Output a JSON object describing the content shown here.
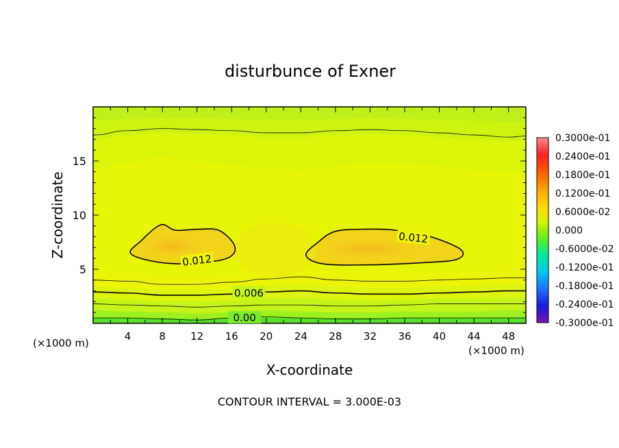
{
  "chart_data": {
    "type": "contour",
    "title": "disturbunce of Exner",
    "xlabel": "X-coordinate",
    "ylabel": "Z-coordinate",
    "x_unit_left": "(×1000 m)",
    "x_unit_right": "(×1000 m)",
    "footer": "CONTOUR INTERVAL = 3.000E-03",
    "xlim": [
      0,
      50
    ],
    "ylim": [
      0,
      20
    ],
    "x_ticks": [
      4,
      8,
      12,
      16,
      20,
      24,
      28,
      32,
      36,
      40,
      44,
      48
    ],
    "y_ticks": [
      5,
      10,
      15
    ],
    "contour_interval": 0.003,
    "contour_labels": [
      {
        "text": "0.012",
        "x": 12,
        "z": 5.8
      },
      {
        "text": "0.012",
        "x": 37,
        "z": 7.9
      },
      {
        "text": "0.006",
        "x": 18,
        "z": 2.8
      },
      {
        "text": "0.00",
        "x": 17.5,
        "z": 0.5
      }
    ],
    "levels": [
      {
        "z": [
          0.5,
          0.5,
          0.4,
          0.3,
          0.5,
          0.6,
          0.5,
          0.4,
          0.4,
          0.5,
          0.5,
          0.5,
          0.5,
          0.5
        ],
        "weight": "thin"
      },
      {
        "z": [
          1.8,
          1.7,
          1.6,
          1.5,
          1.6,
          1.7,
          1.7,
          1.6,
          1.6,
          1.7,
          1.8,
          1.8,
          1.8,
          1.8
        ],
        "weight": "thin"
      },
      {
        "z": [
          2.9,
          2.8,
          2.6,
          2.6,
          2.7,
          2.9,
          3.0,
          2.8,
          2.7,
          2.7,
          2.8,
          2.9,
          3.0,
          3.0
        ],
        "weight": "bold"
      },
      {
        "z": [
          4.0,
          3.9,
          3.6,
          3.6,
          3.8,
          4.1,
          4.3,
          4.0,
          3.9,
          3.9,
          4.0,
          4.1,
          4.2,
          4.2
        ],
        "weight": "thin"
      },
      {
        "z": [
          17.4,
          17.8,
          18.0,
          17.9,
          17.8,
          17.6,
          17.6,
          17.8,
          17.9,
          17.8,
          17.6,
          17.4,
          17.2,
          17.3
        ],
        "weight": "thin"
      }
    ],
    "x_nodes": [
      0,
      4,
      8,
      12,
      16,
      20,
      24,
      28,
      32,
      36,
      40,
      44,
      48,
      50
    ],
    "closed_contours": [
      {
        "value": 0.012,
        "points": [
          [
            4.3,
            6.5
          ],
          [
            5.5,
            7.6
          ],
          [
            7.8,
            9.1
          ],
          [
            9.5,
            8.6
          ],
          [
            12.2,
            8.7
          ],
          [
            14.5,
            8.6
          ],
          [
            16.2,
            7.4
          ],
          [
            16.2,
            6.4
          ],
          [
            14.5,
            5.8
          ],
          [
            10.0,
            5.5
          ],
          [
            6.5,
            5.8
          ]
        ]
      },
      {
        "value": 0.012,
        "points": [
          [
            24.6,
            6.3
          ],
          [
            26.0,
            7.5
          ],
          [
            28.0,
            8.5
          ],
          [
            31.5,
            8.7
          ],
          [
            35.0,
            8.6
          ],
          [
            39.0,
            8.0
          ],
          [
            42.5,
            6.8
          ],
          [
            42.0,
            5.9
          ],
          [
            38.0,
            5.6
          ],
          [
            31.5,
            5.4
          ],
          [
            26.5,
            5.5
          ]
        ]
      }
    ],
    "fill_bands": [
      {
        "color": "#7cec28",
        "z": [
          0.0,
          0.0,
          0.0,
          0.0,
          0.0,
          0.0,
          0.0,
          0.0,
          0.0,
          0.0,
          0.0,
          0.0,
          0.0,
          0.0
        ]
      },
      {
        "color": "#9ef021",
        "z": [
          1.2,
          1.1,
          1.0,
          0.9,
          1.0,
          1.2,
          1.1,
          1.0,
          1.0,
          1.1,
          1.1,
          1.1,
          1.2,
          1.2
        ]
      },
      {
        "color": "#c4f418",
        "z": [
          2.3,
          2.2,
          2.0,
          2.0,
          2.1,
          2.3,
          2.3,
          2.2,
          2.1,
          2.2,
          2.3,
          2.3,
          2.4,
          2.4
        ]
      },
      {
        "color": "#ddf40f",
        "z": [
          3.4,
          3.3,
          3.1,
          3.1,
          3.2,
          3.5,
          3.6,
          3.4,
          3.3,
          3.3,
          3.4,
          3.5,
          3.6,
          3.6
        ]
      },
      {
        "color": "#eef407",
        "z": [
          4.6,
          4.5,
          4.3,
          4.3,
          4.4,
          4.7,
          4.9,
          4.6,
          4.5,
          4.5,
          4.6,
          4.7,
          4.8,
          4.8
        ]
      }
    ],
    "colorbar": {
      "labels": [
        "0.3000e-01",
        "0.2400e-01",
        "0.1800e-01",
        "0.1200e-01",
        "0.6000e-02",
        "0.000",
        "-0.6000e-02",
        "-0.1200e-01",
        "-0.1800e-01",
        "-0.2400e-01",
        "-0.3000e-01"
      ],
      "colors": [
        "#ff8f8f",
        "#ff2020",
        "#ff5a00",
        "#ff9f00",
        "#ffd800",
        "#d6f400",
        "#60ee20",
        "#00e8a0",
        "#00c8f0",
        "#2070ff",
        "#1a1adc",
        "#7a14b4"
      ]
    }
  }
}
